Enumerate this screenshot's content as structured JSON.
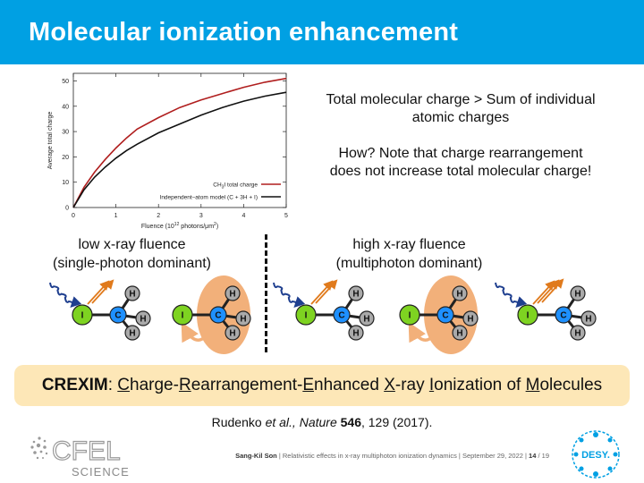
{
  "slide": {
    "title": "Molecular ionization enhancement",
    "text_line1": "Total molecular charge > Sum of individual",
    "text_line2": "atomic charges",
    "text_line3": "How? Note that charge rearrangement",
    "text_line4": "does not increase total molecular charge!",
    "low_fluence_1": "low x-ray fluence",
    "low_fluence_2": "(single-photon dominant)",
    "high_fluence_1": "high x-ray fluence",
    "high_fluence_2": "(multiphoton dominant)",
    "crexim": {
      "lead": "CREXIM",
      "sep": ": ",
      "w1_u": "C",
      "w1_r": "harge-",
      "w2_u": "R",
      "w2_r": "earrangement-",
      "w3_u": "E",
      "w3_r": "nhanced ",
      "w4_u": "X",
      "w4_r": "-ray ",
      "w5_u": "I",
      "w5_r": "onization of ",
      "w6_u": "M",
      "w6_r": "olecules"
    },
    "ref": {
      "authors": "Rudenko ",
      "etal": "et al., ",
      "journal": "Nature ",
      "volume": "546",
      "pages": ", 129 (2017)."
    },
    "footer": {
      "author": "Sang-Kil Son",
      "text": "| Relativistic effects in x-ray multiphoton ionization dynamics | September 29, 2022 |",
      "page": "14",
      "total": "/ 19"
    },
    "logos": {
      "cfel_top": "CFEL",
      "cfel_bottom": "SCIENCE",
      "desy": "DESY."
    }
  },
  "atoms": {
    "I": "I",
    "C": "C",
    "H": "H"
  },
  "colors": {
    "title_bar": "#00a0e3",
    "iodine_green": "#7ed321",
    "carbon_blue": "#1e90ff",
    "hydrogen_gray": "#aaaaaa",
    "charge_cloud": "#f2b07a",
    "xray_blue": "#1f3f8f",
    "arrow_orange": "#e07a1c",
    "box_fill": "#fde7b7",
    "curve_red": "#b01e1e",
    "curve_black": "#111111"
  },
  "chart_data": {
    "type": "line",
    "xlabel_pre": "Fluence (10",
    "xlabel_sup": "12",
    "xlabel_post": " photons/μm",
    "xlabel_sup2": "2",
    "xlabel_end": ")",
    "ylabel": "Average total charge",
    "xlim": [
      0,
      5
    ],
    "ylim": [
      0,
      53
    ],
    "xticks": [
      "0",
      "1",
      "2",
      "3",
      "4",
      "5"
    ],
    "yticks": [
      "0",
      "10",
      "20",
      "30",
      "40",
      "50"
    ],
    "legend_position": "bottom-right",
    "series": [
      {
        "name": "CH3I total charge",
        "name_pre": "CH",
        "name_sub": "3",
        "name_post": "I total charge",
        "color": "#b01e1e",
        "x": [
          0,
          0.25,
          0.5,
          0.75,
          1.0,
          1.25,
          1.5,
          2.0,
          2.5,
          3.0,
          3.5,
          4.0,
          4.5,
          5.0
        ],
        "y": [
          0,
          8,
          14,
          19,
          23.5,
          27.5,
          31,
          35.5,
          39.5,
          42.5,
          45,
          47.5,
          49.5,
          51
        ]
      },
      {
        "name": "Independent–atom model (C + 3H + I)",
        "color": "#111111",
        "x": [
          0,
          0.25,
          0.5,
          0.75,
          1.0,
          1.25,
          1.5,
          2.0,
          2.5,
          3.0,
          3.5,
          4.0,
          4.5,
          5.0
        ],
        "y": [
          0,
          7,
          12,
          16,
          19.5,
          22.5,
          25,
          29.5,
          33,
          36.5,
          39.5,
          42,
          44,
          45.5
        ]
      }
    ]
  }
}
